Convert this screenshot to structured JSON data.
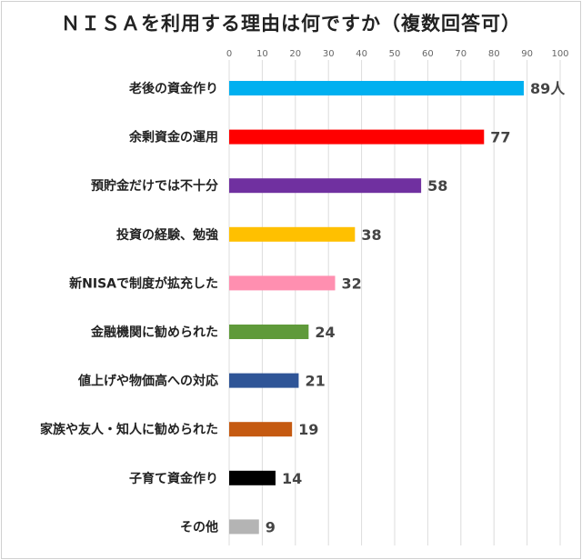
{
  "chart_data": {
    "type": "bar",
    "orientation": "horizontal",
    "title": "ＮＩＳＡを利用する理由は何ですか（複数回答可）",
    "xlim": [
      0,
      100
    ],
    "ticks": [
      0,
      10,
      20,
      30,
      40,
      50,
      60,
      70,
      80,
      90,
      100
    ],
    "grid": true,
    "categories": [
      "老後の資金作り",
      "余剰資金の運用",
      "預貯金だけでは不十分",
      "投資の経験、勉強",
      "新NISAで制度が拡充した",
      "金融機関に勧められた",
      "値上げや物価高への対応",
      "家族や友人・知人に勧められた",
      "子育て資金作り",
      "その他"
    ],
    "values": [
      89,
      77,
      58,
      38,
      32,
      24,
      21,
      19,
      14,
      9
    ],
    "value_labels": [
      "89人",
      "77",
      "58",
      "38",
      "32",
      "24",
      "21",
      "19",
      "14",
      "9"
    ],
    "colors": [
      "#00b0f0",
      "#ff0000",
      "#7030a0",
      "#ffc000",
      "#ff8fb0",
      "#5f9a3a",
      "#2f5597",
      "#c55a11",
      "#000000",
      "#b4b4b4"
    ]
  }
}
